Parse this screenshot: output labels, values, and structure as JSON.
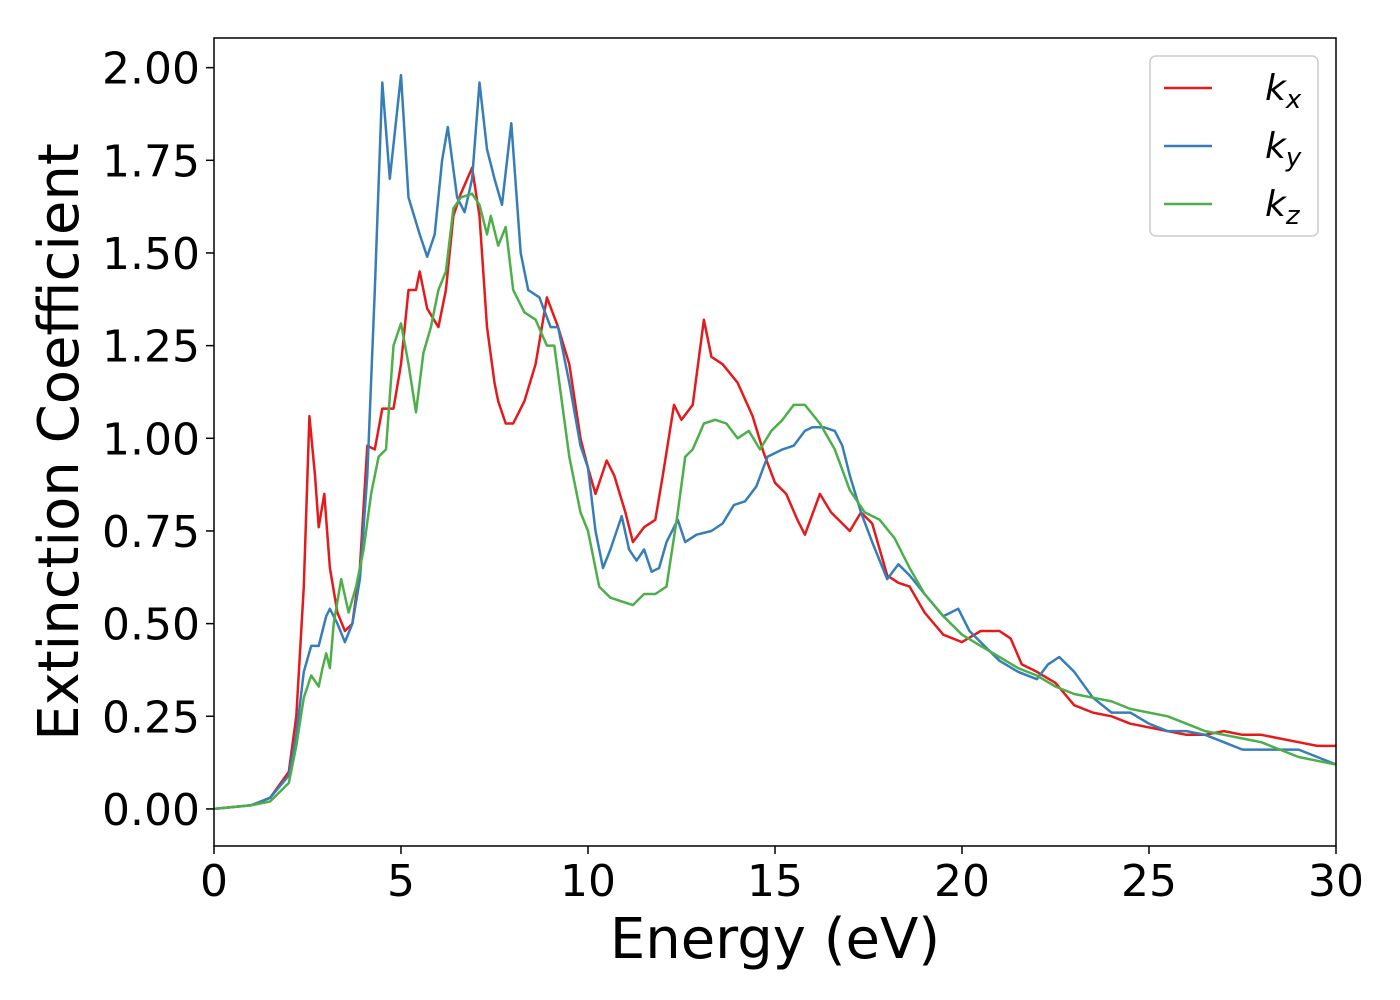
{
  "chart_data": {
    "type": "line",
    "xlabel": "Energy (eV)",
    "ylabel": "Extinction Coefficient",
    "xlim": [
      0,
      30
    ],
    "xticks": [
      0,
      5,
      10,
      15,
      20,
      25,
      30
    ],
    "ylim": [
      -0.1,
      2.08
    ],
    "yticks": [
      {
        "value": 0,
        "label": "0.00"
      },
      {
        "value": 0.25,
        "label": "0.25"
      },
      {
        "value": 0.5,
        "label": "0.50"
      },
      {
        "value": 0.75,
        "label": "0.75"
      },
      {
        "value": 1,
        "label": "1.00"
      },
      {
        "value": 1.25,
        "label": "1.25"
      },
      {
        "value": 1.5,
        "label": "1.50"
      },
      {
        "value": 1.75,
        "label": "1.75"
      },
      {
        "value": 2,
        "label": "2.00"
      }
    ],
    "legend": "upper right",
    "series": [
      {
        "name": "kx",
        "color": "#e41a1c",
        "x": [
          0,
          1,
          1.5,
          2,
          2.2,
          2.4,
          2.55,
          2.7,
          2.8,
          2.95,
          3.1,
          3.3,
          3.5,
          3.7,
          3.9,
          4.1,
          4.3,
          4.5,
          4.8,
          5.0,
          5.2,
          5.4,
          5.5,
          5.7,
          6.0,
          6.2,
          6.4,
          6.6,
          6.9,
          7.1,
          7.3,
          7.5,
          7.6,
          7.8,
          8.0,
          8.3,
          8.6,
          8.9,
          9.2,
          9.5,
          9.8,
          10.0,
          10.2,
          10.5,
          10.7,
          11.0,
          11.2,
          11.5,
          11.8,
          12.0,
          12.3,
          12.5,
          12.8,
          13.1,
          13.3,
          13.6,
          14.0,
          14.4,
          14.7,
          15.0,
          15.3,
          15.6,
          15.8,
          16.2,
          16.5,
          16.8,
          17.0,
          17.3,
          17.6,
          18.0,
          18.3,
          18.6,
          19.0,
          19.5,
          20.0,
          20.5,
          21.0,
          21.3,
          21.6,
          22.0,
          22.5,
          23.0,
          23.5,
          24.0,
          24.5,
          25.0,
          25.5,
          26.0,
          26.5,
          27.0,
          27.5,
          28.0,
          28.5,
          29.0,
          29.5,
          30
        ],
        "values": [
          0,
          0.01,
          0.03,
          0.1,
          0.25,
          0.6,
          1.06,
          0.9,
          0.76,
          0.85,
          0.65,
          0.53,
          0.48,
          0.5,
          0.65,
          0.98,
          0.97,
          1.08,
          1.08,
          1.2,
          1.4,
          1.4,
          1.45,
          1.35,
          1.3,
          1.4,
          1.6,
          1.66,
          1.73,
          1.6,
          1.3,
          1.15,
          1.1,
          1.04,
          1.04,
          1.1,
          1.2,
          1.38,
          1.3,
          1.2,
          1.0,
          0.92,
          0.85,
          0.94,
          0.9,
          0.8,
          0.72,
          0.76,
          0.78,
          0.9,
          1.09,
          1.05,
          1.09,
          1.32,
          1.22,
          1.2,
          1.15,
          1.06,
          0.96,
          0.88,
          0.85,
          0.78,
          0.74,
          0.85,
          0.8,
          0.77,
          0.75,
          0.8,
          0.77,
          0.63,
          0.61,
          0.6,
          0.53,
          0.47,
          0.45,
          0.48,
          0.48,
          0.46,
          0.39,
          0.37,
          0.34,
          0.28,
          0.26,
          0.25,
          0.23,
          0.22,
          0.21,
          0.2,
          0.2,
          0.21,
          0.2,
          0.2,
          0.19,
          0.18,
          0.17,
          0.17
        ]
      },
      {
        "name": "ky",
        "color": "#377eb8",
        "x": [
          0,
          1,
          1.5,
          2,
          2.2,
          2.4,
          2.6,
          2.8,
          3.0,
          3.1,
          3.3,
          3.5,
          3.7,
          3.9,
          4.1,
          4.3,
          4.5,
          4.7,
          5.0,
          5.2,
          5.5,
          5.7,
          5.9,
          6.1,
          6.25,
          6.5,
          6.7,
          6.9,
          7.1,
          7.3,
          7.5,
          7.7,
          7.95,
          8.2,
          8.4,
          8.7,
          9.0,
          9.2,
          9.5,
          9.8,
          10.0,
          10.2,
          10.4,
          10.6,
          10.9,
          11.1,
          11.3,
          11.5,
          11.7,
          11.9,
          12.1,
          12.4,
          12.6,
          12.9,
          13.3,
          13.6,
          13.9,
          14.2,
          14.5,
          14.8,
          15.2,
          15.5,
          15.8,
          16.0,
          16.3,
          16.6,
          16.8,
          17.0,
          17.3,
          17.6,
          18.0,
          18.3,
          18.6,
          19.0,
          19.5,
          19.9,
          20.2,
          20.6,
          21.0,
          21.5,
          22.0,
          22.3,
          22.6,
          23.0,
          23.5,
          24.0,
          24.5,
          25.0,
          25.5,
          26.0,
          26.5,
          27.0,
          27.5,
          28.0,
          28.5,
          29.0,
          29.5,
          30
        ],
        "values": [
          0,
          0.01,
          0.03,
          0.09,
          0.2,
          0.37,
          0.44,
          0.44,
          0.52,
          0.54,
          0.5,
          0.45,
          0.5,
          0.62,
          0.9,
          1.4,
          1.96,
          1.7,
          1.98,
          1.65,
          1.55,
          1.49,
          1.55,
          1.75,
          1.84,
          1.65,
          1.61,
          1.7,
          1.96,
          1.78,
          1.7,
          1.63,
          1.85,
          1.5,
          1.4,
          1.38,
          1.3,
          1.3,
          1.15,
          0.98,
          0.92,
          0.75,
          0.65,
          0.7,
          0.79,
          0.7,
          0.67,
          0.7,
          0.64,
          0.65,
          0.72,
          0.78,
          0.72,
          0.74,
          0.75,
          0.77,
          0.82,
          0.83,
          0.87,
          0.95,
          0.97,
          0.98,
          1.02,
          1.03,
          1.03,
          1.02,
          0.98,
          0.9,
          0.8,
          0.72,
          0.62,
          0.66,
          0.63,
          0.58,
          0.52,
          0.54,
          0.48,
          0.44,
          0.4,
          0.37,
          0.35,
          0.39,
          0.41,
          0.37,
          0.3,
          0.26,
          0.26,
          0.23,
          0.21,
          0.21,
          0.2,
          0.18,
          0.16,
          0.16,
          0.16,
          0.16,
          0.14,
          0.12
        ]
      },
      {
        "name": "kz",
        "color": "#4daf4a",
        "x": [
          0,
          1,
          1.5,
          2,
          2.2,
          2.4,
          2.6,
          2.8,
          2.9,
          3.0,
          3.1,
          3.2,
          3.4,
          3.6,
          3.8,
          4.0,
          4.2,
          4.4,
          4.6,
          4.8,
          5.0,
          5.2,
          5.4,
          5.6,
          5.8,
          6.0,
          6.2,
          6.4,
          6.6,
          6.9,
          7.1,
          7.3,
          7.4,
          7.6,
          7.8,
          8.0,
          8.3,
          8.6,
          8.9,
          9.1,
          9.3,
          9.5,
          9.8,
          10.0,
          10.3,
          10.6,
          10.9,
          11.2,
          11.5,
          11.8,
          12.1,
          12.4,
          12.6,
          12.8,
          13.1,
          13.4,
          13.7,
          14.0,
          14.3,
          14.6,
          14.9,
          15.2,
          15.5,
          15.8,
          16.2,
          16.6,
          17.0,
          17.4,
          17.8,
          18.2,
          18.6,
          19.0,
          19.5,
          20.0,
          20.5,
          21.0,
          21.5,
          22.0,
          22.5,
          23.0,
          23.5,
          24.0,
          24.5,
          25.0,
          25.5,
          26.0,
          26.5,
          27.0,
          27.5,
          28.0,
          28.5,
          29.0,
          29.5,
          30
        ],
        "values": [
          0,
          0.01,
          0.02,
          0.07,
          0.17,
          0.3,
          0.36,
          0.33,
          0.38,
          0.42,
          0.38,
          0.5,
          0.62,
          0.53,
          0.6,
          0.7,
          0.85,
          0.95,
          0.97,
          1.25,
          1.31,
          1.2,
          1.07,
          1.23,
          1.3,
          1.4,
          1.45,
          1.62,
          1.65,
          1.66,
          1.63,
          1.55,
          1.6,
          1.52,
          1.57,
          1.4,
          1.34,
          1.32,
          1.25,
          1.25,
          1.1,
          0.95,
          0.8,
          0.75,
          0.6,
          0.57,
          0.56,
          0.55,
          0.58,
          0.58,
          0.6,
          0.8,
          0.95,
          0.97,
          1.04,
          1.05,
          1.04,
          1.0,
          1.02,
          0.97,
          1.02,
          1.05,
          1.09,
          1.09,
          1.04,
          0.97,
          0.86,
          0.8,
          0.78,
          0.73,
          0.65,
          0.58,
          0.52,
          0.47,
          0.44,
          0.41,
          0.38,
          0.36,
          0.33,
          0.31,
          0.3,
          0.29,
          0.27,
          0.26,
          0.25,
          0.23,
          0.21,
          0.2,
          0.19,
          0.18,
          0.16,
          0.14,
          0.13,
          0.12
        ]
      }
    ]
  }
}
